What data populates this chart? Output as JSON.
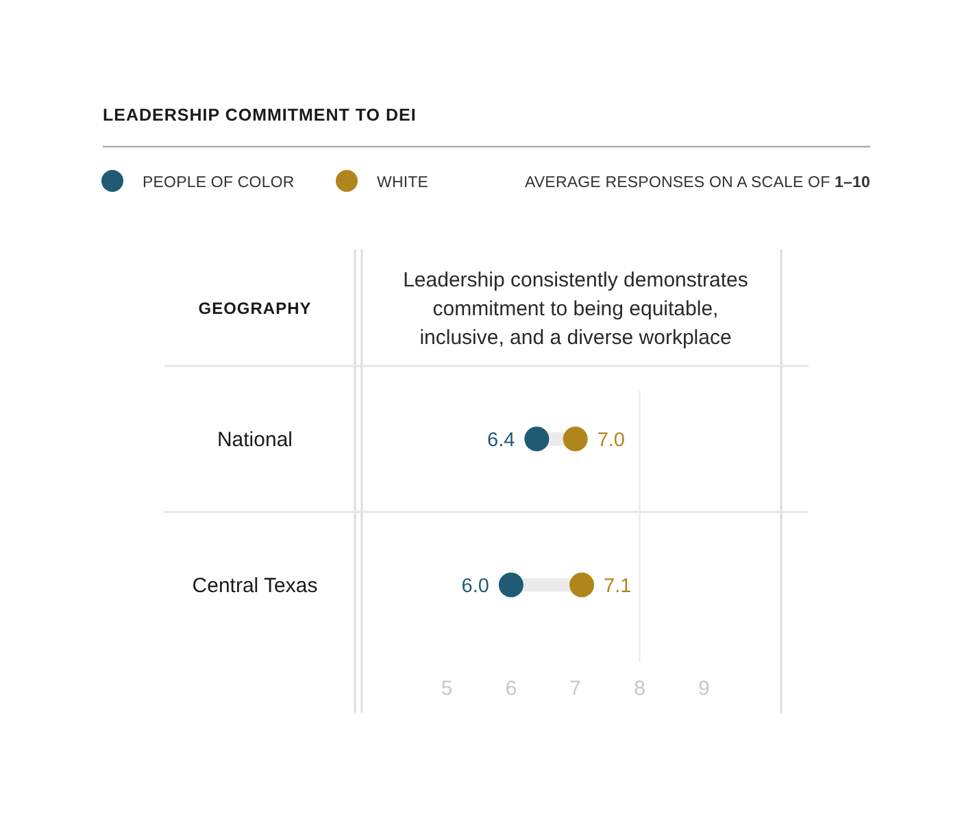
{
  "chart_data": {
    "type": "scatter",
    "orientation": "horizontal",
    "title": "LEADERSHIP COMMITMENT TO DEI",
    "subtitle": "AVERAGE RESPONSES ON A SCALE OF 1–10",
    "ylabel": "GEOGRAPHY",
    "xlabel": "Leadership consistently demonstrates commitment to being equitable, inclusive, and a diverse workplace",
    "categories": [
      "National",
      "Central Texas"
    ],
    "series": [
      {
        "name": "PEOPLE OF COLOR",
        "color": "#1f5b74",
        "values": [
          6.4,
          6.0
        ],
        "value_labels": [
          "6.4",
          "6.0"
        ]
      },
      {
        "name": "WHITE",
        "color": "#b0861c",
        "values": [
          7.0,
          7.1
        ],
        "value_labels": [
          "7.0",
          "7.1"
        ]
      }
    ],
    "xlim": [
      3.7,
      10.2
    ],
    "xticks": [
      5,
      6,
      7,
      8,
      9
    ],
    "ref_lines": [
      {
        "axis": "x",
        "value": 8,
        "color": "#ececec"
      }
    ],
    "legend": "top left",
    "marker": "circle"
  }
}
